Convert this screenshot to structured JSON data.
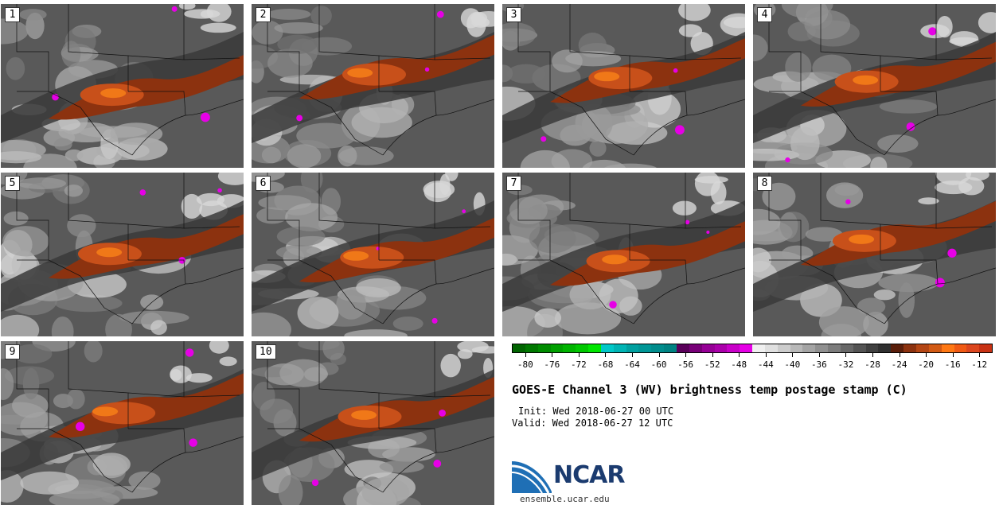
{
  "panels": [
    {
      "label": "1"
    },
    {
      "label": "2"
    },
    {
      "label": "3"
    },
    {
      "label": "4"
    },
    {
      "label": "5"
    },
    {
      "label": "6"
    },
    {
      "label": "7"
    },
    {
      "label": "8"
    },
    {
      "label": "9"
    },
    {
      "label": "10"
    }
  ],
  "colorbar": {
    "colors": [
      "#006400",
      "#007800",
      "#008c00",
      "#00a000",
      "#00b400",
      "#00c800",
      "#00e600",
      "#00c8c8",
      "#00b4b4",
      "#00a0a0",
      "#009696",
      "#008c8c",
      "#008282",
      "#5a005a",
      "#780078",
      "#960096",
      "#aa00aa",
      "#c800c8",
      "#e600e6",
      "#f0f0f0",
      "#e0e0e0",
      "#cccccc",
      "#b8b8b8",
      "#a4a4a4",
      "#909090",
      "#7c7c7c",
      "#686868",
      "#545454",
      "#404040",
      "#303030",
      "#5a1e0a",
      "#8c320f",
      "#b44614",
      "#d25a14",
      "#ff7814",
      "#f05a14",
      "#dc461e",
      "#c83214"
    ],
    "tick_labels": [
      "-80",
      "-76",
      "-72",
      "-68",
      "-64",
      "-60",
      "-56",
      "-52",
      "-48",
      "-44",
      "-40",
      "-36",
      "-32",
      "-28",
      "-24",
      "-20",
      "-16",
      "-12"
    ],
    "min": -82,
    "max": -10
  },
  "title": "GOES-E Channel 3 (WV) brightness temp postage stamp (C)",
  "init_line": "Init: Wed 2018-06-27 00 UTC",
  "valid_line": "Valid: Wed 2018-06-27 12 UTC",
  "logo": {
    "name": "NCAR",
    "url": "ensemble.ucar.edu"
  }
}
